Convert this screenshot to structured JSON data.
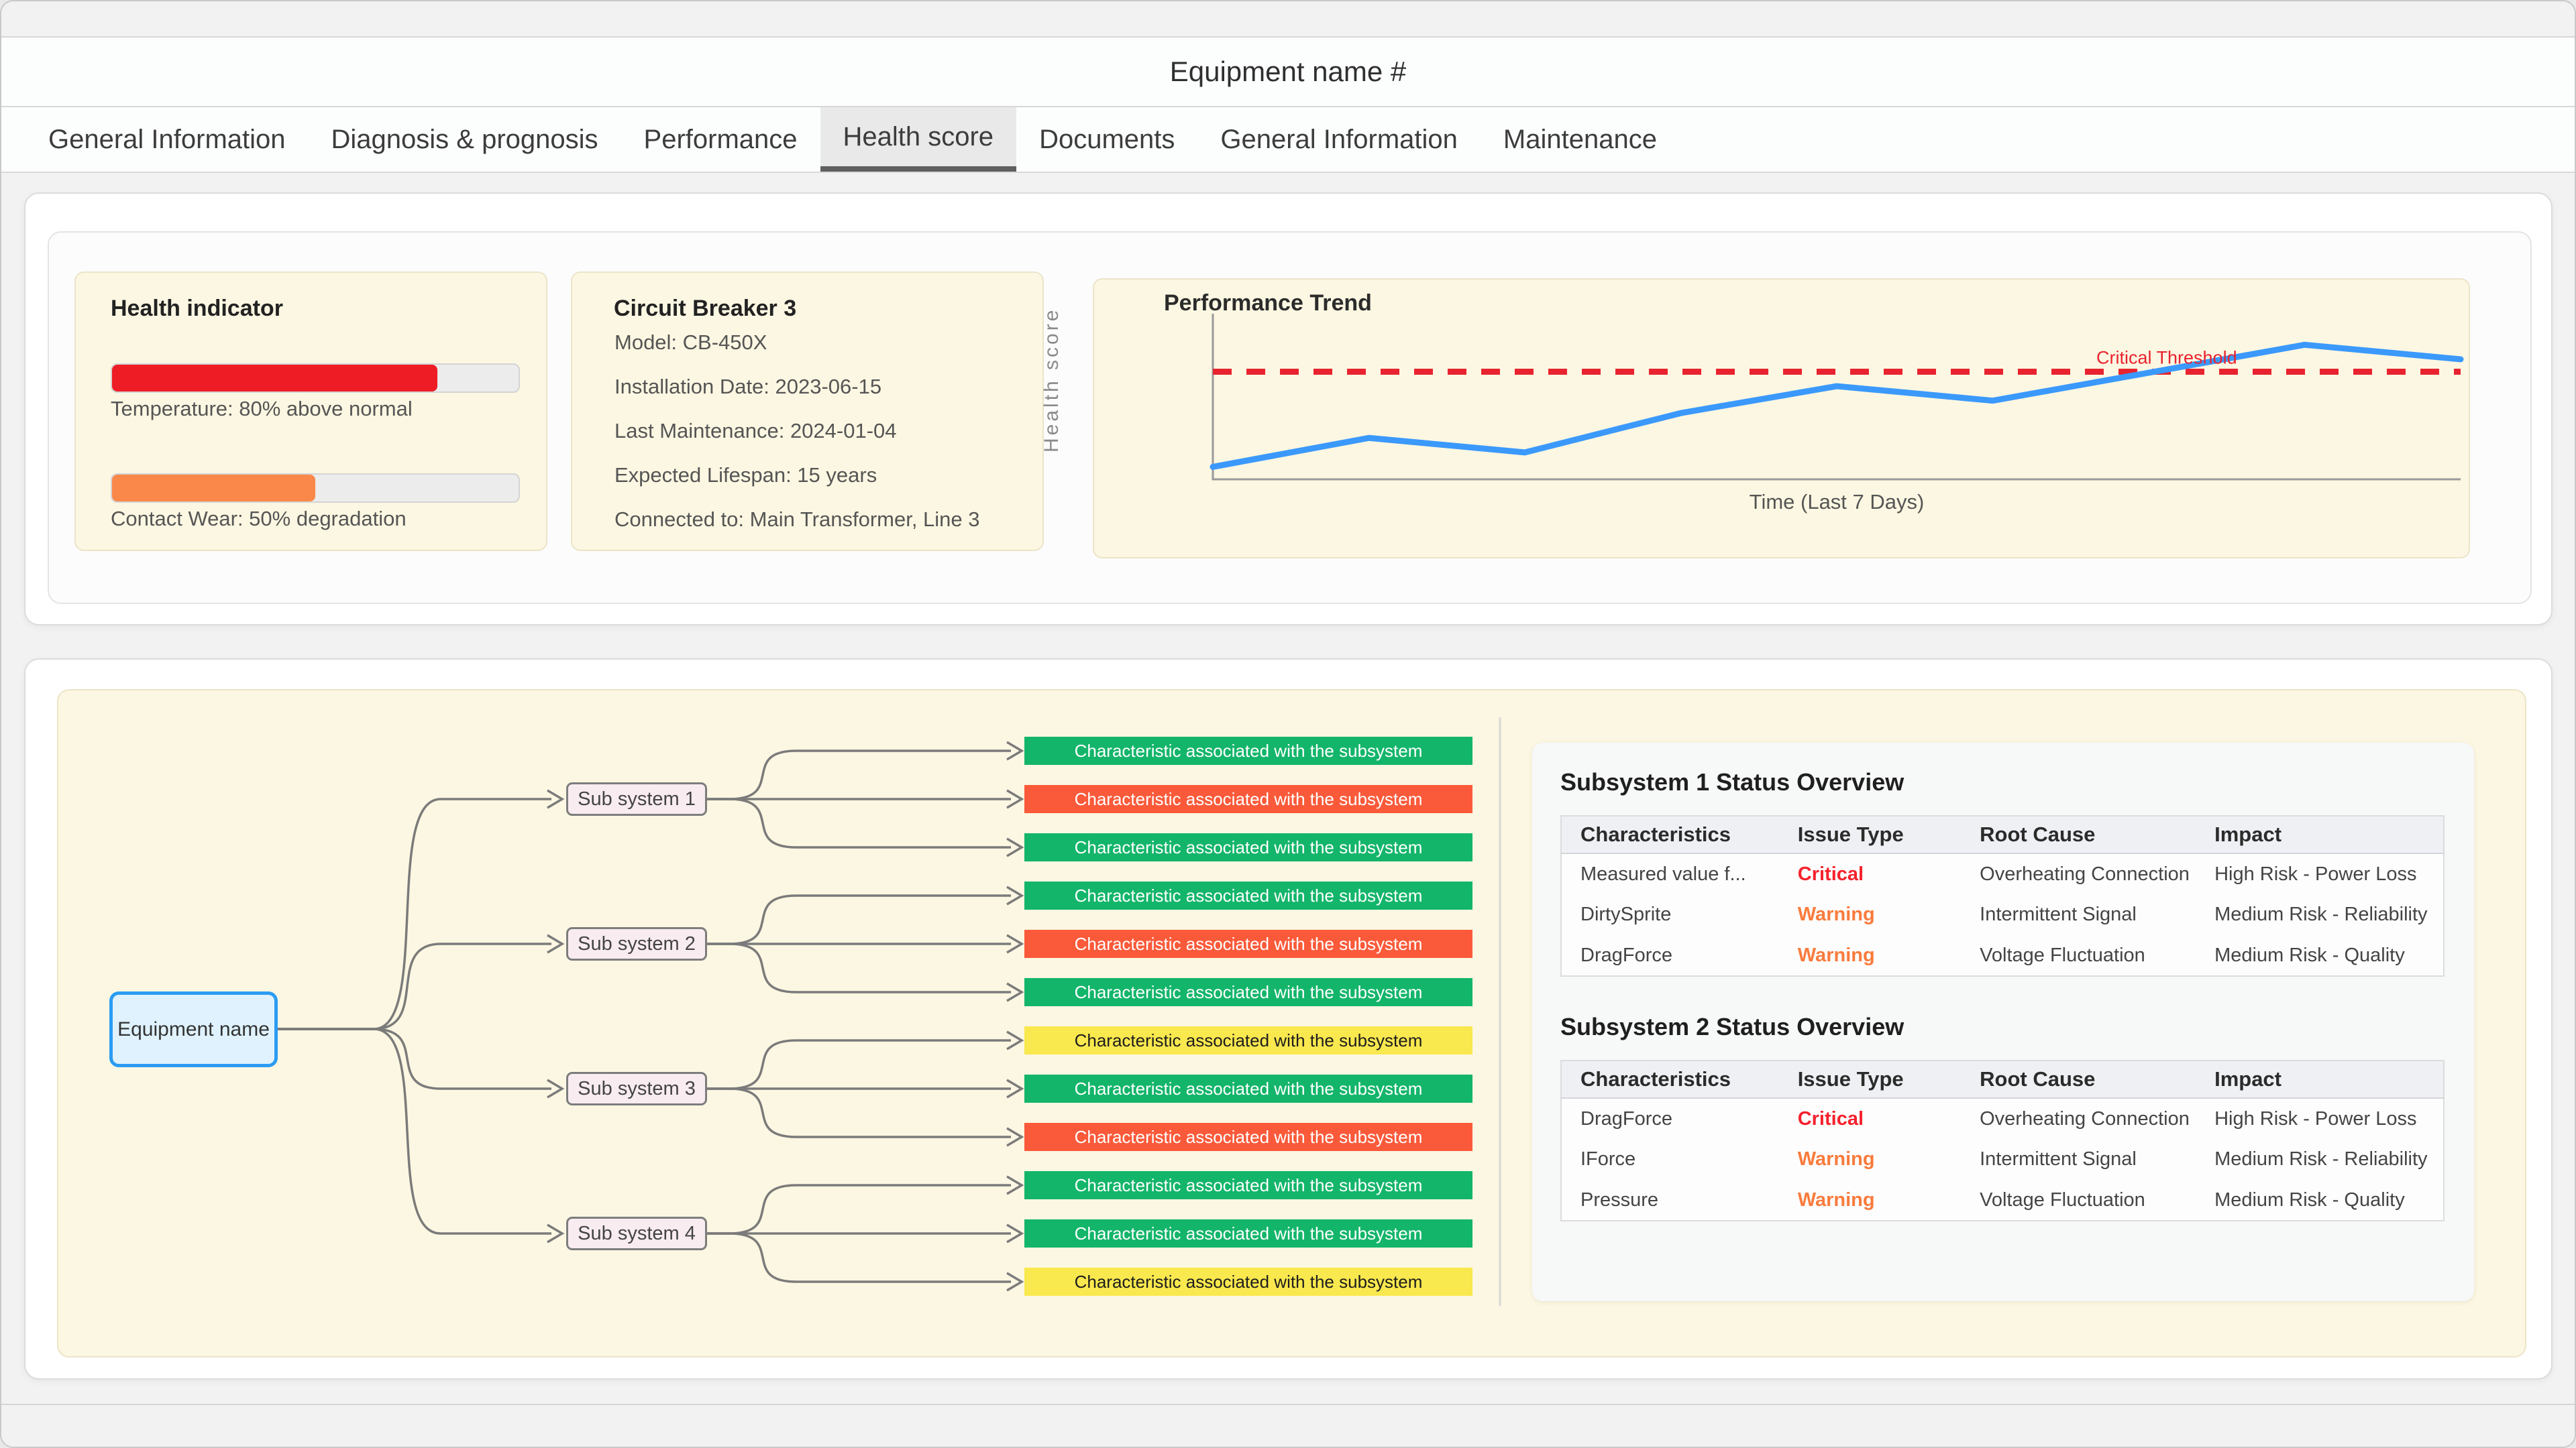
{
  "window": {
    "title": "Equipment name #"
  },
  "tabs": [
    {
      "label": "General Information",
      "active": false
    },
    {
      "label": "Diagnosis & prognosis",
      "active": false
    },
    {
      "label": "Performance",
      "active": false
    },
    {
      "label": "Health score",
      "active": true
    },
    {
      "label": "Documents",
      "active": false
    },
    {
      "label": "General Information",
      "active": false
    },
    {
      "label": "Maintenance",
      "active": false
    }
  ],
  "health_indicator": {
    "title": "Health indicator",
    "bars": [
      {
        "label": "Temperature: 80% above normal",
        "percent": 80,
        "color": "#ee1c25"
      },
      {
        "label": "Contact Wear: 50% degradation",
        "percent": 50,
        "color": "#f9884a"
      }
    ]
  },
  "equipment_card": {
    "title": "Circuit Breaker 3",
    "fields": [
      "Model: CB-450X",
      "Installation Date: 2023-06-15",
      "Last Maintenance: 2024-01-04",
      "Expected Lifespan: 15 years",
      "Connected to: Main Transformer, Line 3"
    ]
  },
  "chart_data": {
    "type": "line",
    "title": "Performance Trend",
    "xlabel": "Time (Last 7 Days)",
    "ylabel": "Health score",
    "x": [
      0,
      1,
      2,
      3,
      4,
      5,
      7,
      8
    ],
    "values": [
      16,
      30,
      23,
      42,
      55,
      48,
      75,
      68
    ],
    "ylim": [
      10,
      90
    ],
    "line_color": "#3b99fc",
    "axis_color": "#9a9a9a",
    "grid": false,
    "legend": "none",
    "threshold": {
      "label": "Critical Threshold",
      "value": 62,
      "color": "#e8232f"
    }
  },
  "diagram": {
    "root": {
      "label": "Equipment name"
    },
    "chip_text": "Characteristic associated with the subsystem",
    "status_colors": {
      "ok": "#13b56a",
      "critical": "#fa5a3a",
      "caution": "#f9e84e"
    },
    "subsystems": [
      {
        "label": "Sub system 1",
        "characteristics": [
          "ok",
          "critical",
          "ok"
        ]
      },
      {
        "label": "Sub system 2",
        "characteristics": [
          "ok",
          "critical",
          "ok"
        ]
      },
      {
        "label": "Sub system 3",
        "characteristics": [
          "caution",
          "ok",
          "critical"
        ]
      },
      {
        "label": "Sub system 4",
        "characteristics": [
          "ok",
          "ok",
          "caution"
        ]
      }
    ]
  },
  "tables": [
    {
      "title": "Subsystem 1 Status Overview",
      "columns": [
        "Characteristics",
        "Issue Type",
        "Root Cause",
        "Impact"
      ],
      "rows": [
        {
          "characteristic": "Measured value f...",
          "issue": "Critical",
          "severity": "critical",
          "root_cause": "Overheating Connection",
          "impact": "High Risk - Power Loss"
        },
        {
          "characteristic": "DirtySprite",
          "issue": "Warning",
          "severity": "warning",
          "root_cause": "Intermittent Signal",
          "impact": "Medium Risk - Reliability"
        },
        {
          "characteristic": "DragForce",
          "issue": "Warning",
          "severity": "warning",
          "root_cause": "Voltage Fluctuation",
          "impact": "Medium Risk - Quality"
        }
      ]
    },
    {
      "title": "Subsystem 2 Status Overview",
      "columns": [
        "Characteristics",
        "Issue Type",
        "Root Cause",
        "Impact"
      ],
      "rows": [
        {
          "characteristic": "DragForce",
          "issue": "Critical",
          "severity": "critical",
          "root_cause": "Overheating Connection",
          "impact": "High Risk - Power Loss"
        },
        {
          "characteristic": "IForce",
          "issue": "Warning",
          "severity": "warning",
          "root_cause": "Intermittent Signal",
          "impact": "Medium Risk - Reliability"
        },
        {
          "characteristic": "Pressure",
          "issue": "Warning",
          "severity": "warning",
          "root_cause": "Voltage Fluctuation",
          "impact": "Medium Risk - Quality"
        }
      ]
    }
  ],
  "colors": {
    "cream_panel": "#fcf7e2",
    "severity_critical": "#f5222d",
    "severity_warning": "#f97b3d",
    "connector": "#7b7b7b",
    "divider": "#d8d8d8"
  }
}
